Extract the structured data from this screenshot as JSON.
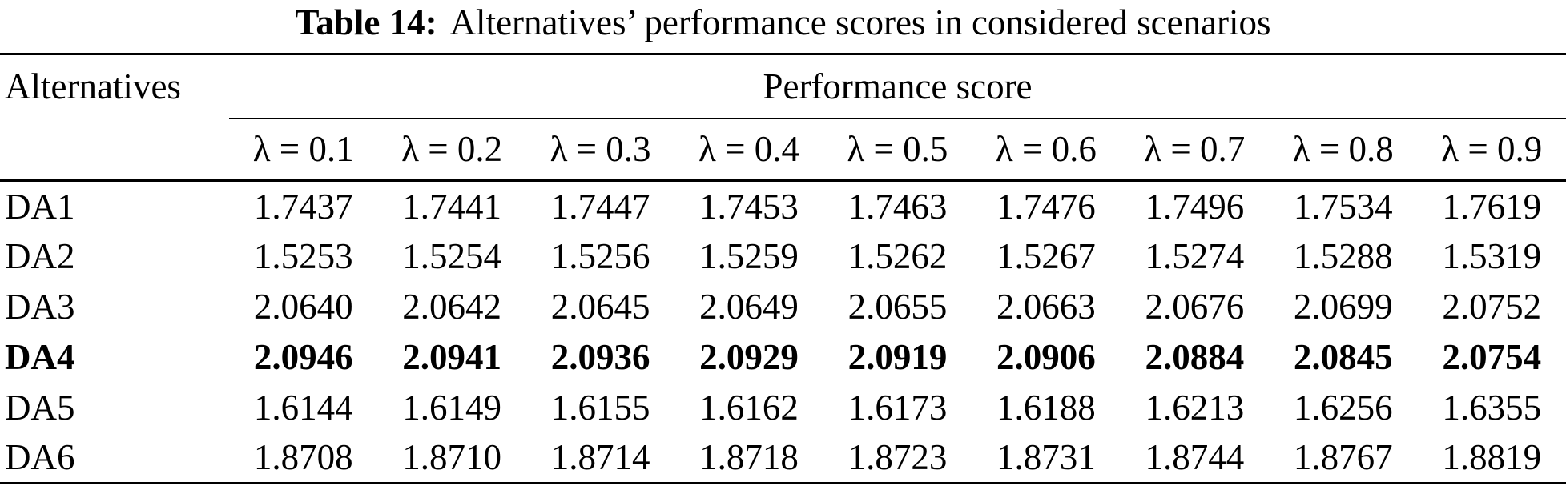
{
  "title": {
    "label": "Table 14:",
    "text": "Alternatives’ performance scores in considered scenarios"
  },
  "header": {
    "alternatives": "Alternatives",
    "group": "Performance score",
    "lambdas": [
      "λ = 0.1",
      "λ = 0.2",
      "λ = 0.3",
      "λ = 0.4",
      "λ = 0.5",
      "λ = 0.6",
      "λ = 0.7",
      "λ = 0.8",
      "λ = 0.9"
    ]
  },
  "rows": [
    {
      "name": "DA1",
      "bold": false,
      "values": [
        "1.7437",
        "1.7441",
        "1.7447",
        "1.7453",
        "1.7463",
        "1.7476",
        "1.7496",
        "1.7534",
        "1.7619"
      ]
    },
    {
      "name": "DA2",
      "bold": false,
      "values": [
        "1.5253",
        "1.5254",
        "1.5256",
        "1.5259",
        "1.5262",
        "1.5267",
        "1.5274",
        "1.5288",
        "1.5319"
      ]
    },
    {
      "name": "DA3",
      "bold": false,
      "values": [
        "2.0640",
        "2.0642",
        "2.0645",
        "2.0649",
        "2.0655",
        "2.0663",
        "2.0676",
        "2.0699",
        "2.0752"
      ]
    },
    {
      "name": "DA4",
      "bold": true,
      "values": [
        "2.0946",
        "2.0941",
        "2.0936",
        "2.0929",
        "2.0919",
        "2.0906",
        "2.0884",
        "2.0845",
        "2.0754"
      ]
    },
    {
      "name": "DA5",
      "bold": false,
      "values": [
        "1.6144",
        "1.6149",
        "1.6155",
        "1.6162",
        "1.6173",
        "1.6188",
        "1.6213",
        "1.6256",
        "1.6355"
      ]
    },
    {
      "name": "DA6",
      "bold": false,
      "values": [
        "1.8708",
        "1.8710",
        "1.8714",
        "1.8718",
        "1.8723",
        "1.8731",
        "1.8744",
        "1.8767",
        "1.8819"
      ]
    }
  ],
  "chart_data": {
    "type": "table",
    "title": "Table 14: Alternatives’ performance scores in considered scenarios",
    "columns": [
      "Alternatives",
      "λ = 0.1",
      "λ = 0.2",
      "λ = 0.3",
      "λ = 0.4",
      "λ = 0.5",
      "λ = 0.6",
      "λ = 0.7",
      "λ = 0.8",
      "λ = 0.9"
    ],
    "rows": [
      [
        "DA1",
        1.7437,
        1.7441,
        1.7447,
        1.7453,
        1.7463,
        1.7476,
        1.7496,
        1.7534,
        1.7619
      ],
      [
        "DA2",
        1.5253,
        1.5254,
        1.5256,
        1.5259,
        1.5262,
        1.5267,
        1.5274,
        1.5288,
        1.5319
      ],
      [
        "DA3",
        2.064,
        2.0642,
        2.0645,
        2.0649,
        2.0655,
        2.0663,
        2.0676,
        2.0699,
        2.0752
      ],
      [
        "DA4",
        2.0946,
        2.0941,
        2.0936,
        2.0929,
        2.0919,
        2.0906,
        2.0884,
        2.0845,
        2.0754
      ],
      [
        "DA5",
        1.6144,
        1.6149,
        1.6155,
        1.6162,
        1.6173,
        1.6188,
        1.6213,
        1.6256,
        1.6355
      ],
      [
        "DA6",
        1.8708,
        1.871,
        1.8714,
        1.8718,
        1.8723,
        1.8731,
        1.8744,
        1.8767,
        1.8819
      ]
    ],
    "highlighted_row": "DA4"
  }
}
